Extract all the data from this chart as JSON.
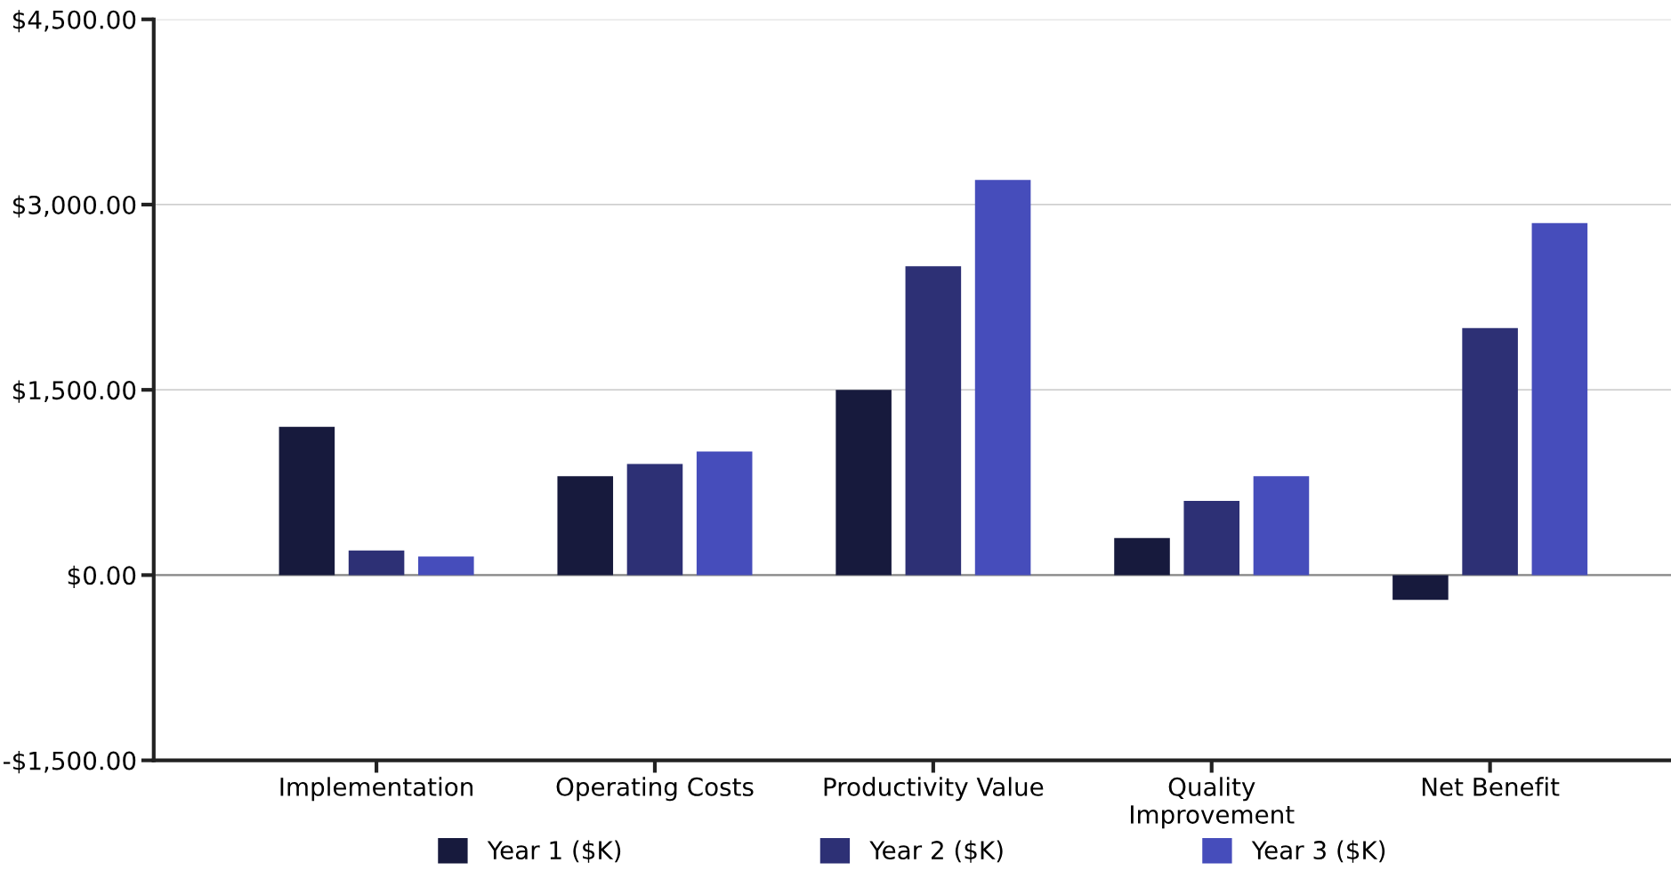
{
  "chart_data": {
    "type": "bar",
    "categories": [
      "Implementation",
      "Operating Costs",
      "Productivity Value",
      "Quality\nImprovement",
      "Net Benefit"
    ],
    "series": [
      {
        "name": "Year 1 ($K)",
        "color": "#171a3d",
        "values": [
          1200,
          800,
          1500,
          300,
          -200
        ]
      },
      {
        "name": "Year 2 ($K)",
        "color": "#2d3075",
        "values": [
          200,
          900,
          2500,
          600,
          2000
        ]
      },
      {
        "name": "Year 3 ($K)",
        "color": "#464dbb",
        "values": [
          150,
          1000,
          3200,
          800,
          2850
        ]
      }
    ],
    "ylim": [
      -1500,
      4500
    ],
    "yticks": [
      {
        "value": -1500,
        "label": "-$1,500.00"
      },
      {
        "value": 0,
        "label": "$0.00"
      },
      {
        "value": 1500,
        "label": "$1,500.00"
      },
      {
        "value": 3000,
        "label": "$3,000.00"
      },
      {
        "value": 4500,
        "label": "$4,500.00"
      }
    ],
    "ref_lines": [
      {
        "axis": "y",
        "value": 0,
        "label": null,
        "color": "#888888"
      }
    ],
    "grid": "y",
    "legend": "bottom"
  }
}
